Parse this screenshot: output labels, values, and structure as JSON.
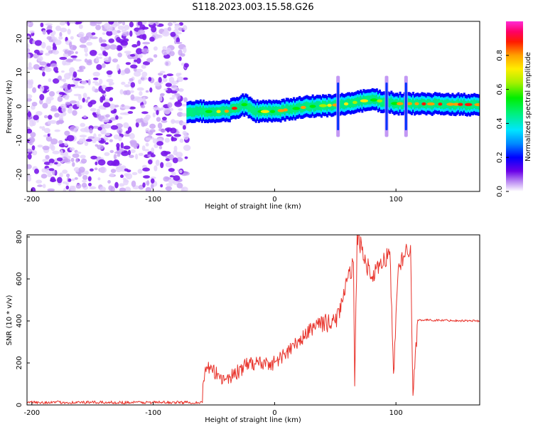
{
  "title": "S118.2023.003.15.58.G26",
  "chart_data": [
    {
      "type": "heatmap",
      "title": "",
      "xlabel": "Height of straight line (km)",
      "ylabel": "Frequency (Hz)",
      "xlim": [
        -204,
        169
      ],
      "ylim": [
        -25,
        25
      ],
      "xticks": [
        -200,
        -100,
        0,
        100
      ],
      "xtick_labels": [
        "-200",
        "-100",
        "0",
        "100"
      ],
      "yticks": [
        -20,
        -10,
        0,
        10,
        20
      ],
      "ytick_labels": [
        "-20",
        "-10",
        "0",
        "10",
        "20"
      ],
      "colorbar": {
        "label": "Normalized spectral amplitude",
        "range": [
          0,
          1
        ],
        "ticks": [
          0.0,
          0.2,
          0.4,
          0.6,
          0.8
        ],
        "tick_labels": [
          "0.0",
          "0.2",
          "0.4",
          "0.6",
          "0.8"
        ],
        "colormap": "gist_ncar-like: white, violet, blue, cyan, green, yellow, orange, red, magenta"
      },
      "features": {
        "noise_region_x_range": [
          -204,
          -72
        ],
        "signal_onset_x": -72,
        "signal_track": [
          {
            "x": -72,
            "y": -1.5
          },
          {
            "x": -40,
            "y": -1.5
          },
          {
            "x": -25,
            "y": 0.5
          },
          {
            "x": -15,
            "y": -1.5
          },
          {
            "x": 0,
            "y": -1.5
          },
          {
            "x": 30,
            "y": 0.0
          },
          {
            "x": 55,
            "y": 0.5
          },
          {
            "x": 80,
            "y": 2.0
          },
          {
            "x": 100,
            "y": 0.8
          },
          {
            "x": 110,
            "y": 0.8
          },
          {
            "x": 169,
            "y": 0.5
          }
        ],
        "vertical_streaks_x": [
          52,
          92,
          108
        ]
      }
    },
    {
      "type": "line",
      "title": "",
      "xlabel": "Height of straight line (km)",
      "ylabel": "SNR (10 * v/v)",
      "xlim": [
        -204,
        169
      ],
      "ylim": [
        0,
        810
      ],
      "xticks": [
        -200,
        -100,
        0,
        100
      ],
      "xtick_labels": [
        "-200",
        "-100",
        "0",
        "100"
      ],
      "yticks": [
        0,
        200,
        400,
        600,
        800
      ],
      "ytick_labels": [
        "0",
        "200",
        "400",
        "600",
        "800"
      ],
      "series": [
        {
          "name": "SNR",
          "color": "#e8322a",
          "baseline_x_range": [
            -204,
            -60
          ],
          "baseline_value": 12,
          "key_points": [
            {
              "x": -60,
              "y": 15
            },
            {
              "x": -57,
              "y": 180
            },
            {
              "x": -40,
              "y": 120
            },
            {
              "x": -20,
              "y": 200
            },
            {
              "x": 0,
              "y": 200
            },
            {
              "x": 20,
              "y": 300
            },
            {
              "x": 35,
              "y": 390
            },
            {
              "x": 50,
              "y": 390
            },
            {
              "x": 65,
              "y": 680
            },
            {
              "x": 66,
              "y": 90
            },
            {
              "x": 68,
              "y": 810
            },
            {
              "x": 80,
              "y": 600
            },
            {
              "x": 95,
              "y": 730
            },
            {
              "x": 98,
              "y": 150
            },
            {
              "x": 102,
              "y": 660
            },
            {
              "x": 112,
              "y": 760
            },
            {
              "x": 114,
              "y": 45
            },
            {
              "x": 118,
              "y": 405
            },
            {
              "x": 169,
              "y": 400
            }
          ]
        }
      ]
    }
  ]
}
